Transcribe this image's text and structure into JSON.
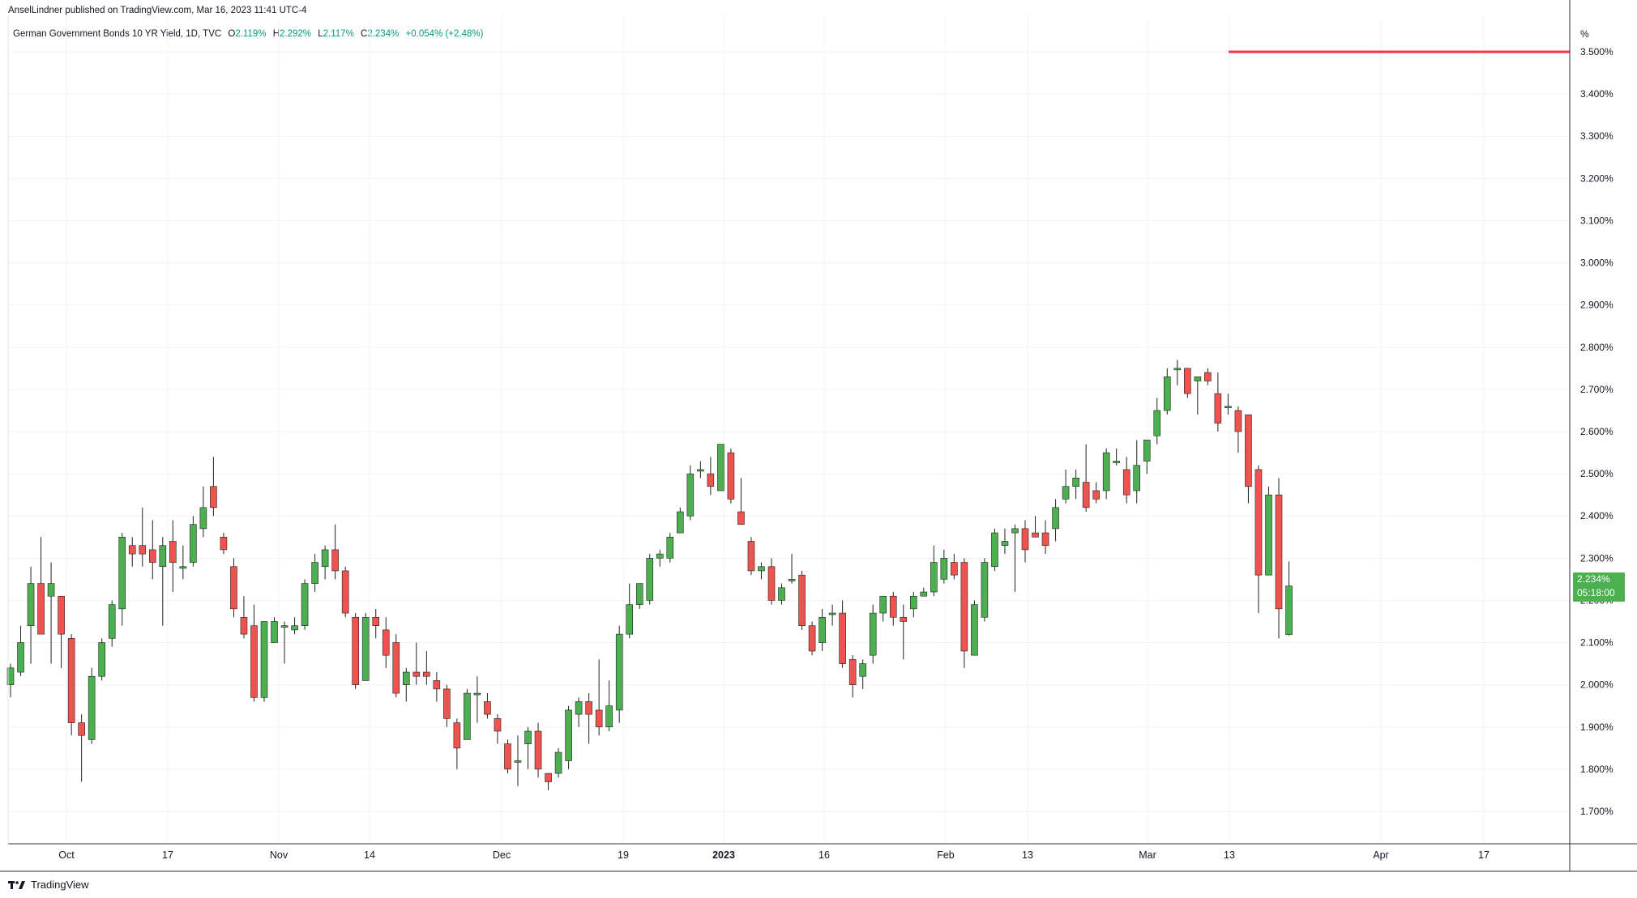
{
  "header": {
    "published": "AnselLindner published on TradingView.com, Mar 16, 2023 11:41 UTC-4"
  },
  "legend": {
    "symbol": "German Government Bonds 10 YR Yield, 1D, TVC",
    "open_label": "O",
    "open": "2.119%",
    "high_label": "H",
    "high": "2.292%",
    "low_label": "L",
    "low": "2.117%",
    "close_label": "C",
    "close": "2.234%",
    "change": "+0.054% (+2.48%)"
  },
  "price_axis": {
    "unit": "%",
    "current_price": "2.234%",
    "countdown": "05:18:00"
  },
  "footer": {
    "brand": "TradingView"
  },
  "colors": {
    "up": "#4caf50",
    "down": "#ef5350",
    "level_line": "#f23645",
    "grid": "#f0f3fa",
    "axis_border": "#2a2e39"
  },
  "chart_data": {
    "type": "candlestick",
    "title": "German Government Bonds 10 YR Yield, 1D, TVC",
    "xlabel": "",
    "ylabel": "%",
    "ylim": [
      1.62,
      3.55
    ],
    "grid": true,
    "y_ticks": [
      "1.700%",
      "1.800%",
      "1.900%",
      "2.000%",
      "2.100%",
      "2.200%",
      "2.300%",
      "2.400%",
      "2.500%",
      "2.600%",
      "2.700%",
      "2.800%",
      "2.900%",
      "3.000%",
      "3.100%",
      "3.200%",
      "3.300%",
      "3.400%",
      "3.500%"
    ],
    "x_ticks": [
      {
        "label": "Oct",
        "date": "2022-10-03",
        "bold": false
      },
      {
        "label": "17",
        "date": "2022-10-17",
        "bold": false
      },
      {
        "label": "Nov",
        "date": "2022-11-01",
        "bold": false
      },
      {
        "label": "14",
        "date": "2022-11-14",
        "bold": false
      },
      {
        "label": "Dec",
        "date": "2022-12-01",
        "bold": false
      },
      {
        "label": "19",
        "date": "2022-12-19",
        "bold": false
      },
      {
        "label": "2023",
        "date": "2023-01-02",
        "bold": true
      },
      {
        "label": "16",
        "date": "2023-01-16",
        "bold": false
      },
      {
        "label": "Feb",
        "date": "2023-02-01",
        "bold": false
      },
      {
        "label": "13",
        "date": "2023-02-13",
        "bold": false
      },
      {
        "label": "Mar",
        "date": "2023-03-01",
        "bold": false
      },
      {
        "label": "13",
        "date": "2023-03-13",
        "bold": false
      },
      {
        "label": "Apr",
        "date": "2023-04-03",
        "bold": false
      },
      {
        "label": "17",
        "date": "2023-04-17",
        "bold": false
      }
    ],
    "horizontal_line": {
      "value": 3.5,
      "from_date": "2023-03-13"
    },
    "candles": [
      {
        "date": "2022-09-26",
        "o": 2.0,
        "h": 2.05,
        "l": 1.97,
        "c": 2.04
      },
      {
        "date": "2022-09-27",
        "o": 2.03,
        "h": 2.14,
        "l": 2.02,
        "c": 2.1
      },
      {
        "date": "2022-09-28",
        "o": 2.14,
        "h": 2.28,
        "l": 2.05,
        "c": 2.24
      },
      {
        "date": "2022-09-29",
        "o": 2.24,
        "h": 2.35,
        "l": 2.12,
        "c": 2.12
      },
      {
        "date": "2022-09-30",
        "o": 2.21,
        "h": 2.29,
        "l": 2.05,
        "c": 2.24
      },
      {
        "date": "2022-10-03",
        "o": 2.21,
        "h": 2.21,
        "l": 2.04,
        "c": 2.12
      },
      {
        "date": "2022-10-04",
        "o": 2.11,
        "h": 2.12,
        "l": 1.88,
        "c": 1.91
      },
      {
        "date": "2022-10-05",
        "o": 1.91,
        "h": 1.93,
        "l": 1.77,
        "c": 1.88
      },
      {
        "date": "2022-10-06",
        "o": 1.87,
        "h": 2.04,
        "l": 1.86,
        "c": 2.02
      },
      {
        "date": "2022-10-07",
        "o": 2.02,
        "h": 2.11,
        "l": 2.01,
        "c": 2.1
      },
      {
        "date": "2022-10-10",
        "o": 2.11,
        "h": 2.2,
        "l": 2.09,
        "c": 2.19
      },
      {
        "date": "2022-10-11",
        "o": 2.18,
        "h": 2.36,
        "l": 2.14,
        "c": 2.35
      },
      {
        "date": "2022-10-12",
        "o": 2.33,
        "h": 2.35,
        "l": 2.28,
        "c": 2.31
      },
      {
        "date": "2022-10-13",
        "o": 2.33,
        "h": 2.42,
        "l": 2.28,
        "c": 2.31
      },
      {
        "date": "2022-10-14",
        "o": 2.32,
        "h": 2.39,
        "l": 2.25,
        "c": 2.29
      },
      {
        "date": "2022-10-17",
        "o": 2.28,
        "h": 2.35,
        "l": 2.14,
        "c": 2.33
      },
      {
        "date": "2022-10-18",
        "o": 2.34,
        "h": 2.39,
        "l": 2.22,
        "c": 2.29
      },
      {
        "date": "2022-10-19",
        "o": 2.28,
        "h": 2.33,
        "l": 2.25,
        "c": 2.28
      },
      {
        "date": "2022-10-20",
        "o": 2.29,
        "h": 2.4,
        "l": 2.28,
        "c": 2.38
      },
      {
        "date": "2022-10-21",
        "o": 2.37,
        "h": 2.47,
        "l": 2.35,
        "c": 2.42
      },
      {
        "date": "2022-10-24",
        "o": 2.47,
        "h": 2.54,
        "l": 2.4,
        "c": 2.42
      },
      {
        "date": "2022-10-25",
        "o": 2.35,
        "h": 2.36,
        "l": 2.31,
        "c": 2.32
      },
      {
        "date": "2022-10-26",
        "o": 2.28,
        "h": 2.3,
        "l": 2.16,
        "c": 2.18
      },
      {
        "date": "2022-10-27",
        "o": 2.16,
        "h": 2.21,
        "l": 2.11,
        "c": 2.12
      },
      {
        "date": "2022-10-28",
        "o": 2.14,
        "h": 2.19,
        "l": 1.96,
        "c": 1.97
      },
      {
        "date": "2022-10-31",
        "o": 1.97,
        "h": 2.15,
        "l": 1.96,
        "c": 2.15
      },
      {
        "date": "2022-11-01",
        "o": 2.1,
        "h": 2.16,
        "l": 2.1,
        "c": 2.15
      },
      {
        "date": "2022-11-02",
        "o": 2.14,
        "h": 2.15,
        "l": 2.05,
        "c": 2.14
      },
      {
        "date": "2022-11-03",
        "o": 2.13,
        "h": 2.16,
        "l": 2.12,
        "c": 2.14
      },
      {
        "date": "2022-11-04",
        "o": 2.14,
        "h": 2.25,
        "l": 2.13,
        "c": 2.24
      },
      {
        "date": "2022-11-07",
        "o": 2.24,
        "h": 2.31,
        "l": 2.22,
        "c": 2.29
      },
      {
        "date": "2022-11-08",
        "o": 2.28,
        "h": 2.33,
        "l": 2.25,
        "c": 2.32
      },
      {
        "date": "2022-11-09",
        "o": 2.32,
        "h": 2.38,
        "l": 2.25,
        "c": 2.27
      },
      {
        "date": "2022-11-10",
        "o": 2.27,
        "h": 2.28,
        "l": 2.16,
        "c": 2.17
      },
      {
        "date": "2022-11-11",
        "o": 2.16,
        "h": 2.17,
        "l": 1.99,
        "c": 2.0
      },
      {
        "date": "2022-11-14",
        "o": 2.01,
        "h": 2.17,
        "l": 2.01,
        "c": 2.16
      },
      {
        "date": "2022-11-15",
        "o": 2.16,
        "h": 2.18,
        "l": 2.11,
        "c": 2.14
      },
      {
        "date": "2022-11-16",
        "o": 2.13,
        "h": 2.16,
        "l": 2.04,
        "c": 2.07
      },
      {
        "date": "2022-11-17",
        "o": 2.1,
        "h": 2.12,
        "l": 1.97,
        "c": 1.98
      },
      {
        "date": "2022-11-18",
        "o": 2.0,
        "h": 2.04,
        "l": 1.96,
        "c": 2.03
      },
      {
        "date": "2022-11-21",
        "o": 2.03,
        "h": 2.1,
        "l": 2.0,
        "c": 2.02
      },
      {
        "date": "2022-11-22",
        "o": 2.03,
        "h": 2.08,
        "l": 2.0,
        "c": 2.02
      },
      {
        "date": "2022-11-23",
        "o": 2.01,
        "h": 2.03,
        "l": 1.96,
        "c": 1.99
      },
      {
        "date": "2022-11-24",
        "o": 1.99,
        "h": 2.0,
        "l": 1.9,
        "c": 1.92
      },
      {
        "date": "2022-11-25",
        "o": 1.91,
        "h": 1.92,
        "l": 1.8,
        "c": 1.85
      },
      {
        "date": "2022-11-28",
        "o": 1.87,
        "h": 1.99,
        "l": 1.87,
        "c": 1.98
      },
      {
        "date": "2022-11-29",
        "o": 1.98,
        "h": 2.02,
        "l": 1.91,
        "c": 1.98
      },
      {
        "date": "2022-11-30",
        "o": 1.96,
        "h": 1.98,
        "l": 1.92,
        "c": 1.93
      },
      {
        "date": "2022-12-01",
        "o": 1.92,
        "h": 1.93,
        "l": 1.86,
        "c": 1.89
      },
      {
        "date": "2022-12-02",
        "o": 1.86,
        "h": 1.87,
        "l": 1.79,
        "c": 1.8
      },
      {
        "date": "2022-12-05",
        "o": 1.82,
        "h": 1.88,
        "l": 1.76,
        "c": 1.82
      },
      {
        "date": "2022-12-06",
        "o": 1.86,
        "h": 1.9,
        "l": 1.8,
        "c": 1.89
      },
      {
        "date": "2022-12-07",
        "o": 1.89,
        "h": 1.91,
        "l": 1.78,
        "c": 1.8
      },
      {
        "date": "2022-12-08",
        "o": 1.79,
        "h": 1.79,
        "l": 1.75,
        "c": 1.77
      },
      {
        "date": "2022-12-09",
        "o": 1.79,
        "h": 1.85,
        "l": 1.78,
        "c": 1.84
      },
      {
        "date": "2022-12-12",
        "o": 1.82,
        "h": 1.95,
        "l": 1.8,
        "c": 1.94
      },
      {
        "date": "2022-12-13",
        "o": 1.93,
        "h": 1.97,
        "l": 1.9,
        "c": 1.96
      },
      {
        "date": "2022-12-14",
        "o": 1.96,
        "h": 1.98,
        "l": 1.86,
        "c": 1.93
      },
      {
        "date": "2022-12-15",
        "o": 1.94,
        "h": 2.06,
        "l": 1.88,
        "c": 1.9
      },
      {
        "date": "2022-12-16",
        "o": 1.9,
        "h": 2.01,
        "l": 1.89,
        "c": 1.95
      },
      {
        "date": "2022-12-19",
        "o": 1.94,
        "h": 2.14,
        "l": 1.91,
        "c": 2.12
      },
      {
        "date": "2022-12-20",
        "o": 2.12,
        "h": 2.24,
        "l": 2.11,
        "c": 2.19
      },
      {
        "date": "2022-12-21",
        "o": 2.19,
        "h": 2.24,
        "l": 2.18,
        "c": 2.24
      },
      {
        "date": "2022-12-22",
        "o": 2.2,
        "h": 2.31,
        "l": 2.19,
        "c": 2.3
      },
      {
        "date": "2022-12-23",
        "o": 2.3,
        "h": 2.32,
        "l": 2.28,
        "c": 2.31
      },
      {
        "date": "2022-12-27",
        "o": 2.3,
        "h": 2.36,
        "l": 2.29,
        "c": 2.35
      },
      {
        "date": "2022-12-28",
        "o": 2.36,
        "h": 2.42,
        "l": 2.36,
        "c": 2.41
      },
      {
        "date": "2022-12-29",
        "o": 2.4,
        "h": 2.52,
        "l": 2.39,
        "c": 2.5
      },
      {
        "date": "2022-12-30",
        "o": 2.51,
        "h": 2.53,
        "l": 2.49,
        "c": 2.51
      },
      {
        "date": "2023-01-02",
        "o": 2.5,
        "h": 2.54,
        "l": 2.45,
        "c": 2.47
      },
      {
        "date": "2023-01-03",
        "o": 2.46,
        "h": 2.57,
        "l": 2.46,
        "c": 2.57
      },
      {
        "date": "2023-01-04",
        "o": 2.55,
        "h": 2.56,
        "l": 2.43,
        "c": 2.44
      },
      {
        "date": "2023-01-05",
        "o": 2.41,
        "h": 2.49,
        "l": 2.38,
        "c": 2.38
      },
      {
        "date": "2023-01-06",
        "o": 2.34,
        "h": 2.35,
        "l": 2.26,
        "c": 2.27
      },
      {
        "date": "2023-01-09",
        "o": 2.27,
        "h": 2.29,
        "l": 2.25,
        "c": 2.28
      },
      {
        "date": "2023-01-10",
        "o": 2.28,
        "h": 2.3,
        "l": 2.19,
        "c": 2.2
      },
      {
        "date": "2023-01-11",
        "o": 2.2,
        "h": 2.24,
        "l": 2.19,
        "c": 2.23
      },
      {
        "date": "2023-01-12",
        "o": 2.25,
        "h": 2.31,
        "l": 2.24,
        "c": 2.25
      },
      {
        "date": "2023-01-13",
        "o": 2.26,
        "h": 2.27,
        "l": 2.13,
        "c": 2.14
      },
      {
        "date": "2023-01-16",
        "o": 2.14,
        "h": 2.15,
        "l": 2.07,
        "c": 2.08
      },
      {
        "date": "2023-01-17",
        "o": 2.1,
        "h": 2.18,
        "l": 2.08,
        "c": 2.16
      },
      {
        "date": "2023-01-18",
        "o": 2.17,
        "h": 2.19,
        "l": 2.14,
        "c": 2.17
      },
      {
        "date": "2023-01-19",
        "o": 2.17,
        "h": 2.2,
        "l": 2.04,
        "c": 2.05
      },
      {
        "date": "2023-01-20",
        "o": 2.06,
        "h": 2.07,
        "l": 1.97,
        "c": 2.0
      },
      {
        "date": "2023-01-23",
        "o": 2.02,
        "h": 2.06,
        "l": 1.99,
        "c": 2.05
      },
      {
        "date": "2023-01-24",
        "o": 2.07,
        "h": 2.19,
        "l": 2.05,
        "c": 2.17
      },
      {
        "date": "2023-01-25",
        "o": 2.17,
        "h": 2.21,
        "l": 2.15,
        "c": 2.21
      },
      {
        "date": "2023-01-26",
        "o": 2.21,
        "h": 2.22,
        "l": 2.14,
        "c": 2.16
      },
      {
        "date": "2023-01-27",
        "o": 2.16,
        "h": 2.19,
        "l": 2.06,
        "c": 2.15
      },
      {
        "date": "2023-01-30",
        "o": 2.18,
        "h": 2.22,
        "l": 2.16,
        "c": 2.21
      },
      {
        "date": "2023-01-31",
        "o": 2.21,
        "h": 2.23,
        "l": 2.21,
        "c": 2.22
      },
      {
        "date": "2023-02-01",
        "o": 2.22,
        "h": 2.33,
        "l": 2.21,
        "c": 2.29
      },
      {
        "date": "2023-02-02",
        "o": 2.25,
        "h": 2.32,
        "l": 2.24,
        "c": 2.3
      },
      {
        "date": "2023-02-03",
        "o": 2.29,
        "h": 2.31,
        "l": 2.25,
        "c": 2.26
      },
      {
        "date": "2023-02-06",
        "o": 2.29,
        "h": 2.3,
        "l": 2.04,
        "c": 2.08
      },
      {
        "date": "2023-02-07",
        "o": 2.07,
        "h": 2.2,
        "l": 2.07,
        "c": 2.19
      },
      {
        "date": "2023-02-08",
        "o": 2.16,
        "h": 2.3,
        "l": 2.15,
        "c": 2.29
      },
      {
        "date": "2023-02-09",
        "o": 2.28,
        "h": 2.37,
        "l": 2.27,
        "c": 2.36
      },
      {
        "date": "2023-02-10",
        "o": 2.33,
        "h": 2.37,
        "l": 2.31,
        "c": 2.34
      },
      {
        "date": "2023-02-13",
        "o": 2.36,
        "h": 2.38,
        "l": 2.22,
        "c": 2.37
      },
      {
        "date": "2023-02-14",
        "o": 2.37,
        "h": 2.39,
        "l": 2.29,
        "c": 2.32
      },
      {
        "date": "2023-02-15",
        "o": 2.36,
        "h": 2.4,
        "l": 2.35,
        "c": 2.35
      },
      {
        "date": "2023-02-16",
        "o": 2.36,
        "h": 2.39,
        "l": 2.31,
        "c": 2.33
      },
      {
        "date": "2023-02-17",
        "o": 2.37,
        "h": 2.44,
        "l": 2.34,
        "c": 2.42
      },
      {
        "date": "2023-02-20",
        "o": 2.44,
        "h": 2.51,
        "l": 2.43,
        "c": 2.47
      },
      {
        "date": "2023-02-21",
        "o": 2.47,
        "h": 2.51,
        "l": 2.44,
        "c": 2.49
      },
      {
        "date": "2023-02-22",
        "o": 2.48,
        "h": 2.57,
        "l": 2.41,
        "c": 2.42
      },
      {
        "date": "2023-02-23",
        "o": 2.46,
        "h": 2.48,
        "l": 2.43,
        "c": 2.44
      },
      {
        "date": "2023-02-24",
        "o": 2.46,
        "h": 2.56,
        "l": 2.44,
        "c": 2.55
      },
      {
        "date": "2023-02-27",
        "o": 2.53,
        "h": 2.56,
        "l": 2.52,
        "c": 2.53
      },
      {
        "date": "2023-02-28",
        "o": 2.51,
        "h": 2.54,
        "l": 2.43,
        "c": 2.45
      },
      {
        "date": "2023-03-01",
        "o": 2.46,
        "h": 2.58,
        "l": 2.43,
        "c": 2.52
      },
      {
        "date": "2023-03-02",
        "o": 2.53,
        "h": 2.58,
        "l": 2.5,
        "c": 2.58
      },
      {
        "date": "2023-03-03",
        "o": 2.59,
        "h": 2.68,
        "l": 2.57,
        "c": 2.65
      },
      {
        "date": "2023-03-06",
        "o": 2.65,
        "h": 2.75,
        "l": 2.64,
        "c": 2.73
      },
      {
        "date": "2023-03-07",
        "o": 2.75,
        "h": 2.77,
        "l": 2.71,
        "c": 2.75
      },
      {
        "date": "2023-03-08",
        "o": 2.75,
        "h": 2.75,
        "l": 2.68,
        "c": 2.69
      },
      {
        "date": "2023-03-09",
        "o": 2.72,
        "h": 2.73,
        "l": 2.64,
        "c": 2.73
      },
      {
        "date": "2023-03-10",
        "o": 2.74,
        "h": 2.75,
        "l": 2.71,
        "c": 2.72
      },
      {
        "date": "2023-03-13",
        "o": 2.69,
        "h": 2.74,
        "l": 2.6,
        "c": 2.62
      },
      {
        "date": "2023-03-14",
        "o": 2.66,
        "h": 2.69,
        "l": 2.64,
        "c": 2.66
      },
      {
        "date": "2023-03-15",
        "o": 2.65,
        "h": 2.66,
        "l": 2.55,
        "c": 2.6
      },
      {
        "date": "2023-03-15b",
        "o": 2.64,
        "h": 2.64,
        "l": 2.43,
        "c": 2.47
      },
      {
        "date": "2023-03-15c",
        "o": 2.51,
        "h": 2.52,
        "l": 2.17,
        "c": 2.26
      },
      {
        "date": "2023-03-15d",
        "o": 2.26,
        "h": 2.47,
        "l": 2.26,
        "c": 2.45
      },
      {
        "date": "2023-03-15e",
        "o": 2.45,
        "h": 2.49,
        "l": 2.11,
        "c": 2.18
      },
      {
        "date": "2023-03-16",
        "o": 2.119,
        "h": 2.292,
        "l": 2.117,
        "c": 2.234
      }
    ]
  }
}
